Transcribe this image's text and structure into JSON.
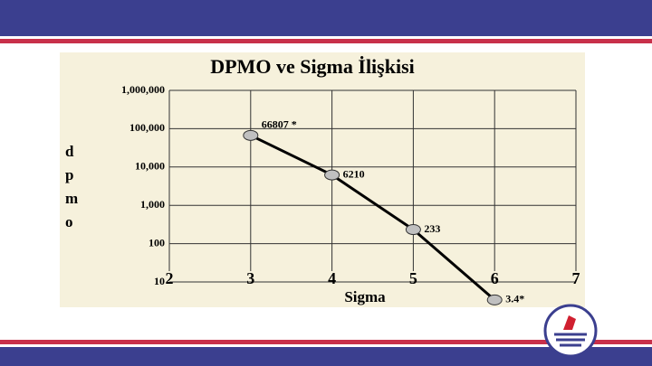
{
  "chart_data": {
    "type": "line",
    "title": "DPMO ve Sigma İlişkisi",
    "x_label": "Sigma",
    "y_label": "dpmo",
    "x": [
      3,
      4,
      5,
      6
    ],
    "values": [
      66807,
      6210,
      233,
      3.4
    ],
    "value_labels": [
      "66807 *",
      "6210",
      "233",
      "3.4*"
    ],
    "color": "#000000",
    "marker_color": "#c0c0c0",
    "xlim": [
      2,
      7
    ],
    "xticks": [
      2,
      3,
      4,
      5,
      6,
      7
    ],
    "ylim": [
      10,
      1000000
    ],
    "y_scale": "log",
    "yticks": [
      {
        "value": 1000000,
        "label": "1,000,000"
      },
      {
        "value": 100000,
        "label": "100,000"
      },
      {
        "value": 10000,
        "label": "10,000"
      },
      {
        "value": 1000,
        "label": "1,000"
      },
      100,
      10
    ],
    "grid": true
  }
}
